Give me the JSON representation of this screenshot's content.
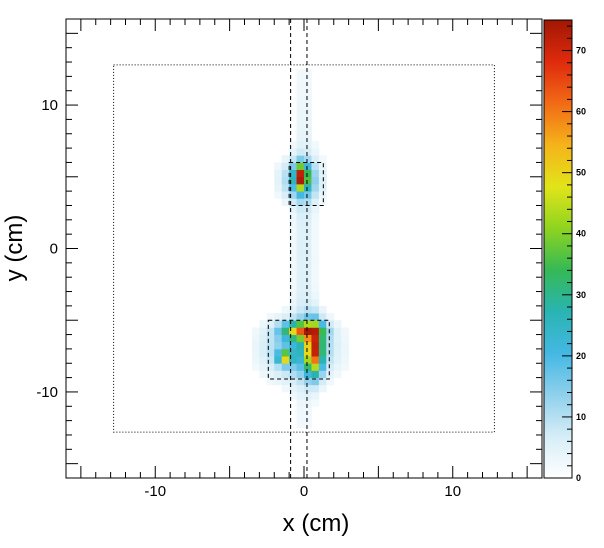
{
  "chart_data": {
    "type": "heatmap",
    "title": "",
    "xlabel": "x (cm)",
    "ylabel": "y (cm)",
    "xlim": [
      -16,
      16
    ],
    "ylim": [
      -16,
      16
    ],
    "x_ticks": [
      -10,
      0,
      10
    ],
    "y_ticks": [
      -10,
      0,
      10
    ],
    "x_tick_labels": [
      "-10",
      "0",
      "10"
    ],
    "y_tick_labels": [
      "-10",
      "0",
      "10"
    ],
    "colorbar": {
      "range": [
        0,
        75
      ],
      "ticks": [
        0,
        10,
        20,
        30,
        40,
        50,
        60,
        70
      ],
      "tick_labels": [
        "0",
        "10",
        "20",
        "30",
        "40",
        "50",
        "60",
        "70"
      ]
    },
    "blobs": [
      {
        "x": 0,
        "y": 0,
        "sx": 0.55,
        "sy": 9.0,
        "peak": 6
      },
      {
        "x": -0.2,
        "y": 4.8,
        "sx": 0.9,
        "sy": 1.0,
        "peak": 20
      },
      {
        "x": -0.2,
        "y": 5.0,
        "sx": 0.28,
        "sy": 0.55,
        "peak": 55
      },
      {
        "x": -0.3,
        "y": -7.0,
        "sx": 1.6,
        "sy": 1.4,
        "peak": 20
      },
      {
        "x": 0.7,
        "y": -7.0,
        "sx": 0.38,
        "sy": 1.2,
        "peak": 55
      },
      {
        "x": -0.1,
        "y": -5.7,
        "sx": 0.9,
        "sy": 0.38,
        "peak": 45
      },
      {
        "x": -1.3,
        "y": -7.6,
        "sx": 0.3,
        "sy": 0.3,
        "peak": 40
      }
    ],
    "overlays": {
      "outer_boundary": {
        "x": [
          -12.8,
          12.8
        ],
        "y": [
          -12.8,
          12.8
        ]
      },
      "vertical_lines_x": [
        -0.9,
        0.2
      ],
      "boxes": [
        {
          "x": [
            -1.0,
            1.3
          ],
          "y": [
            3.0,
            6.0
          ]
        },
        {
          "x": [
            -2.4,
            1.7
          ],
          "y": [
            -9.1,
            -5.0
          ]
        }
      ]
    }
  },
  "colors": {
    "scale": [
      "#ffffff",
      "#d6edf7",
      "#8fd0ec",
      "#43b8e3",
      "#2ab4b2",
      "#35b955",
      "#8fd41f",
      "#e2e41a",
      "#f5b31a",
      "#f26a16",
      "#df2a0d",
      "#a01704"
    ]
  }
}
